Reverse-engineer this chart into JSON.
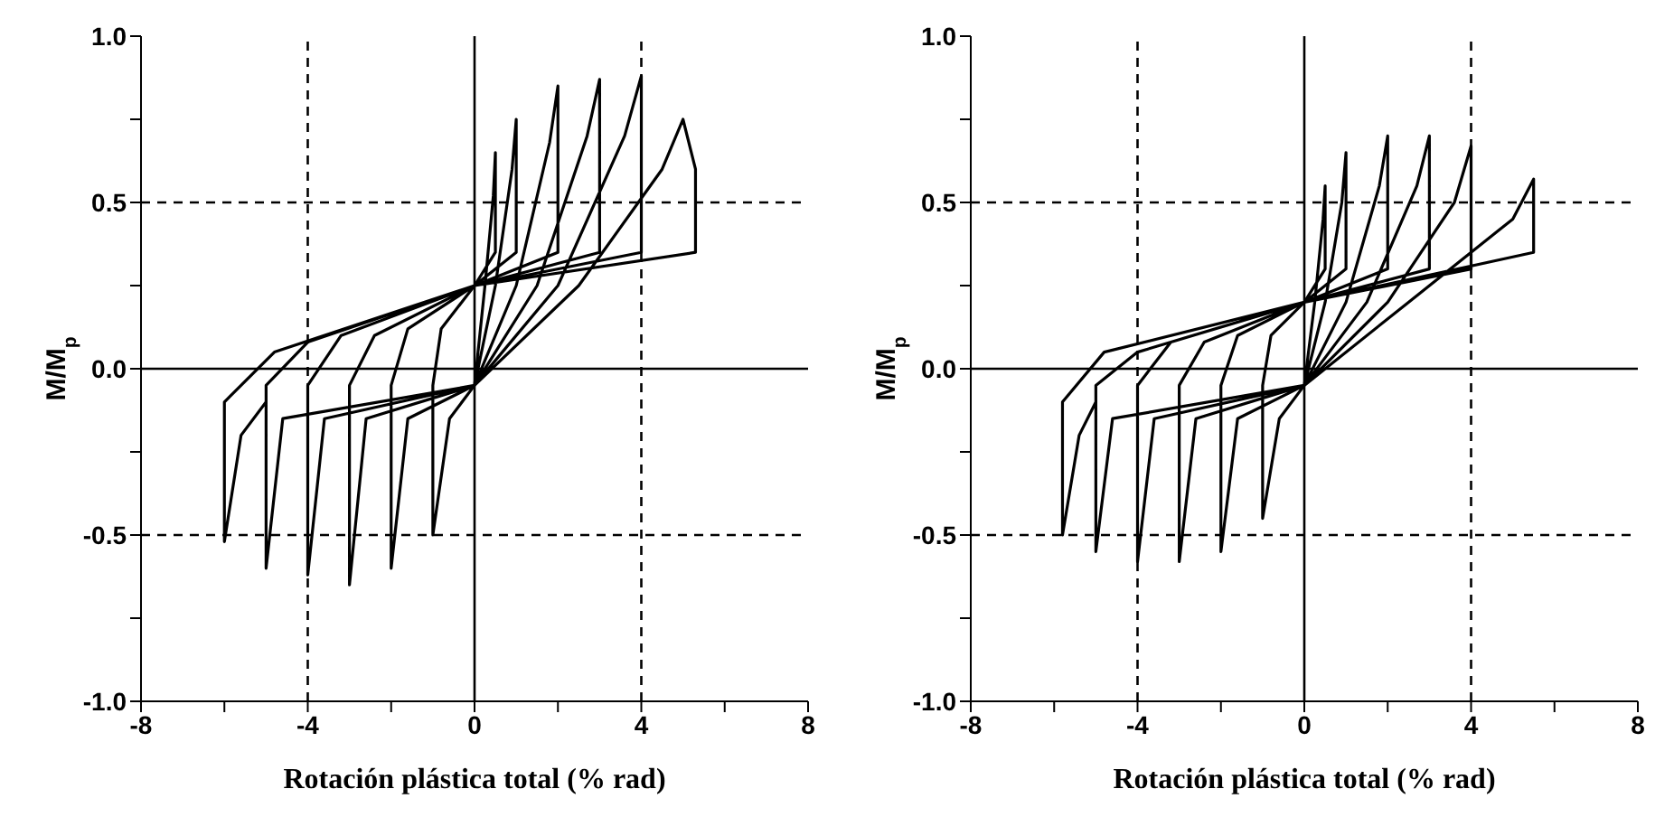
{
  "chart_data": [
    {
      "type": "line",
      "xlabel": "Rotación plástica total (% rad)",
      "ylabel": "M/M$_{p}$",
      "xlim": [
        -8,
        8
      ],
      "ylim": [
        -1,
        1
      ],
      "xticks": [
        -8,
        {
          "value": -6,
          "label": null
        },
        -4,
        {
          "value": -2,
          "label": null
        },
        0,
        {
          "value": 2,
          "label": null
        },
        4,
        {
          "value": 6,
          "label": null
        },
        8
      ],
      "yticks": [
        {
          "value": -1,
          "label": "-1.0"
        },
        {
          "value": -0.75,
          "label": null
        },
        {
          "value": -0.5,
          "label": "-0.5"
        },
        {
          "value": -0.25,
          "label": null
        },
        {
          "value": 0,
          "label": "0.0"
        },
        {
          "value": 0.25,
          "label": null
        },
        {
          "value": 0.5,
          "label": "0.5"
        },
        {
          "value": 0.75,
          "label": null
        },
        {
          "value": 1,
          "label": "1.0"
        }
      ],
      "ref_lines": [
        {
          "axis": "x",
          "value": -4,
          "line_style": "dashed"
        },
        {
          "axis": "x",
          "value": 4,
          "line_style": "dashed"
        },
        {
          "axis": "y",
          "value": 0.5,
          "line_style": "dashed"
        },
        {
          "axis": "y",
          "value": -0.5,
          "line_style": "dashed"
        },
        {
          "axis": "x",
          "value": 0,
          "line_style": "solid"
        },
        {
          "axis": "y",
          "value": 0,
          "line_style": "solid"
        }
      ],
      "series": [
        {
          "color": "#000000",
          "x": [
            0,
            0.25,
            0.45,
            0.5,
            0.5,
            0,
            -0.8,
            -1,
            -1,
            -0.6,
            0,
            0.5,
            0.9,
            1,
            1,
            0,
            -1.6,
            -2,
            -2,
            -1.6,
            0,
            1,
            1.8,
            2,
            2,
            0,
            -2.4,
            -3,
            -3,
            -2.6,
            0,
            1.5,
            2.7,
            3,
            3,
            0,
            -3.2,
            -4,
            -4,
            -3.6,
            0,
            2,
            3.6,
            4,
            4,
            0,
            -4,
            -5,
            -5,
            -4.6,
            0,
            2.5,
            4.5,
            5,
            5.3,
            5.3,
            0,
            -4.8,
            -6,
            -6,
            -5.6,
            -5
          ],
          "values": [
            -0.05,
            0.25,
            0.52,
            0.65,
            0.35,
            0.25,
            0.12,
            -0.05,
            -0.5,
            -0.15,
            -0.05,
            0.25,
            0.6,
            0.75,
            0.35,
            0.25,
            0.12,
            -0.05,
            -0.6,
            -0.15,
            -0.05,
            0.25,
            0.68,
            0.85,
            0.35,
            0.25,
            0.1,
            -0.05,
            -0.65,
            -0.15,
            -0.05,
            0.25,
            0.7,
            0.87,
            0.35,
            0.25,
            0.1,
            -0.05,
            -0.62,
            -0.15,
            -0.05,
            0.25,
            0.7,
            0.88,
            0.35,
            0.25,
            0.08,
            -0.05,
            -0.6,
            -0.15,
            -0.05,
            0.25,
            0.6,
            0.75,
            0.6,
            0.35,
            0.25,
            0.05,
            -0.1,
            -0.52,
            -0.2,
            -0.1
          ]
        }
      ]
    },
    {
      "type": "line",
      "xlabel": "Rotación plástica total (% rad)",
      "ylabel": "M/M$_{p}$",
      "xlim": [
        -8,
        8
      ],
      "ylim": [
        -1,
        1
      ],
      "xticks": [
        -8,
        {
          "value": -6,
          "label": null
        },
        -4,
        {
          "value": -2,
          "label": null
        },
        0,
        {
          "value": 2,
          "label": null
        },
        4,
        {
          "value": 6,
          "label": null
        },
        8
      ],
      "yticks": [
        {
          "value": -1,
          "label": "-1.0"
        },
        {
          "value": -0.75,
          "label": null
        },
        {
          "value": -0.5,
          "label": "-0.5"
        },
        {
          "value": -0.25,
          "label": null
        },
        {
          "value": 0,
          "label": "0.0"
        },
        {
          "value": 0.25,
          "label": null
        },
        {
          "value": 0.5,
          "label": "0.5"
        },
        {
          "value": 0.75,
          "label": null
        },
        {
          "value": 1,
          "label": "1.0"
        }
      ],
      "ref_lines": [
        {
          "axis": "x",
          "value": -4,
          "line_style": "dashed"
        },
        {
          "axis": "x",
          "value": 4,
          "line_style": "dashed"
        },
        {
          "axis": "y",
          "value": 0.5,
          "line_style": "dashed"
        },
        {
          "axis": "y",
          "value": -0.5,
          "line_style": "dashed"
        },
        {
          "axis": "x",
          "value": 0,
          "line_style": "solid"
        },
        {
          "axis": "y",
          "value": 0,
          "line_style": "solid"
        }
      ],
      "series": [
        {
          "color": "#000000",
          "x": [
            0,
            0.25,
            0.45,
            0.5,
            0.5,
            0,
            -0.8,
            -1,
            -1,
            -0.6,
            0,
            0.5,
            0.9,
            1,
            1,
            0,
            -1.6,
            -2,
            -2,
            -1.6,
            0,
            1,
            1.8,
            2,
            2,
            0,
            -2.4,
            -3,
            -3,
            -2.6,
            0,
            1.5,
            2.7,
            3,
            3,
            0,
            -3.2,
            -4,
            -4,
            -3.6,
            0,
            2,
            3.6,
            4,
            4,
            0,
            -4,
            -5,
            -5,
            -4.6,
            0,
            2.5,
            5,
            5.5,
            5.5,
            0,
            -4.8,
            -5.8,
            -5.8,
            -5.4,
            -5
          ],
          "values": [
            -0.05,
            0.2,
            0.45,
            0.55,
            0.3,
            0.2,
            0.1,
            -0.05,
            -0.45,
            -0.15,
            -0.05,
            0.2,
            0.5,
            0.65,
            0.3,
            0.2,
            0.1,
            -0.05,
            -0.55,
            -0.15,
            -0.05,
            0.2,
            0.55,
            0.7,
            0.3,
            0.2,
            0.08,
            -0.05,
            -0.58,
            -0.15,
            -0.05,
            0.2,
            0.55,
            0.7,
            0.3,
            0.2,
            0.08,
            -0.05,
            -0.58,
            -0.15,
            -0.05,
            0.2,
            0.5,
            0.67,
            0.3,
            0.2,
            0.05,
            -0.05,
            -0.55,
            -0.15,
            -0.05,
            0.2,
            0.45,
            0.57,
            0.35,
            0.2,
            0.05,
            -0.1,
            -0.5,
            -0.2,
            -0.1
          ]
        }
      ]
    }
  ]
}
